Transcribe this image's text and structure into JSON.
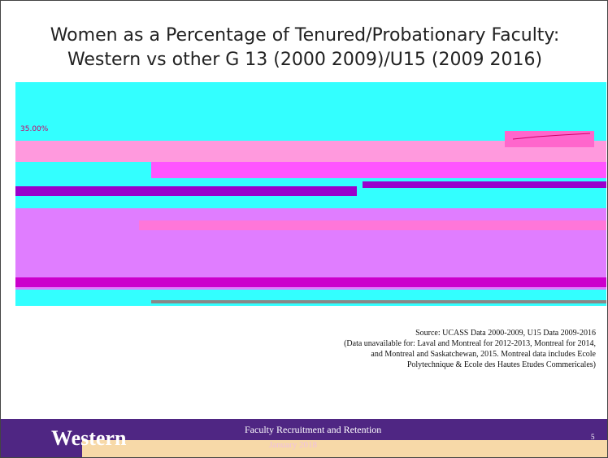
{
  "slide": {
    "title": [
      "Women as a Percentage of Tenured/Probationary Faculty:",
      "Western vs other G 13 (2000 2009)/U15 (2009 2016)"
    ],
    "chart": {
      "tick_labels": [
        "35.00%"
      ]
    },
    "source": [
      "Source:  UCASS Data 2000-2009, U15 Data 2009-2016",
      "(Data unavailable for: Laval and Montreal for 2012-2013, Montreal for 2014,",
      "and Montreal and Saskatchewan, 2015.  Montreal data includes Ecole",
      "Polytechnique & Ecole des Hautes Etudes Commericales)"
    ],
    "footer": {
      "brand": "Western",
      "text": "Faculty Recruitment and Retention",
      "date": "January 2018",
      "page": "5"
    }
  }
}
